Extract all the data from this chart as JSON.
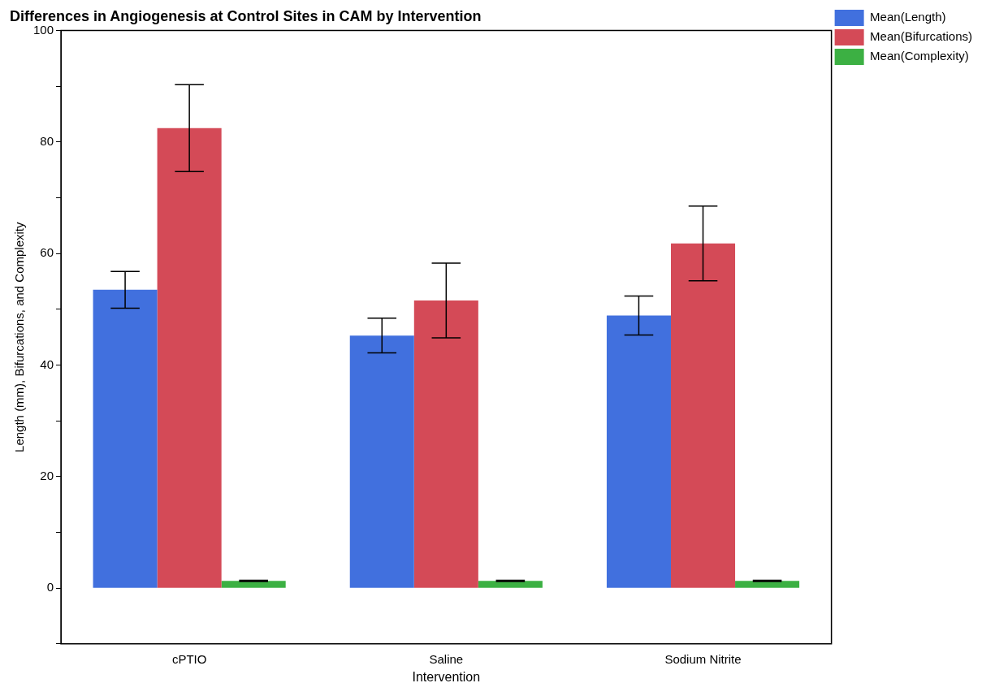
{
  "chart_data": {
    "type": "bar",
    "title": "Differences in Angiogenesis at Control Sites in CAM by Intervention",
    "xlabel": "Intervention",
    "ylabel": "Length (mm), Bifurcations, and Complexity",
    "categories": [
      "cPTIO",
      "Saline",
      "Sodium Nitrite"
    ],
    "series": [
      {
        "name": "Mean(Length)",
        "color": "#4170de",
        "values": [
          53.5,
          45.3,
          48.9
        ],
        "errors": [
          3.3,
          3.1,
          3.5
        ]
      },
      {
        "name": "Mean(Bifurcations)",
        "color": "#d44a57",
        "values": [
          82.5,
          51.6,
          61.8
        ],
        "errors": [
          7.8,
          6.7,
          6.7
        ]
      },
      {
        "name": "Mean(Complexity)",
        "color": "#3cb043",
        "values": [
          1.3,
          1.3,
          1.3
        ],
        "errors": [
          0.1,
          0.1,
          0.1
        ]
      }
    ],
    "ylim": [
      -10,
      100
    ],
    "yticks": [
      {
        "value": -10,
        "label": null
      },
      0,
      {
        "value": 10,
        "label": null
      },
      20,
      {
        "value": 30,
        "label": null
      },
      40,
      {
        "value": 50,
        "label": null
      },
      60,
      {
        "value": 70,
        "label": null
      },
      80,
      {
        "value": 90,
        "label": null
      },
      100
    ],
    "grid": false,
    "legend": "top right"
  }
}
